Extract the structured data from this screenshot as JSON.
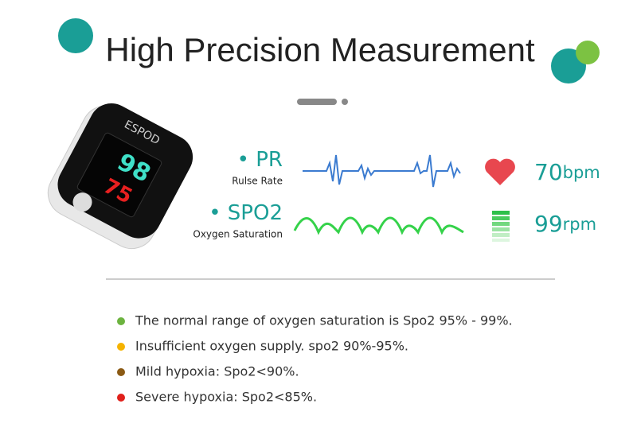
{
  "header": {
    "title": "High Precision Measurement"
  },
  "device": {
    "brand": "ESPOD",
    "spo2_reading": "98",
    "pr_reading": "75"
  },
  "metrics": [
    {
      "label": "PR",
      "sublabel": "Rulse Rate",
      "value": "70",
      "unit": "bpm"
    },
    {
      "label": "SPO2",
      "sublabel": "Oxygen Saturation",
      "value": "99",
      "unit": "rpm"
    }
  ],
  "notes": [
    "The normal range of oxygen saturation is Spo2 95% - 99%.",
    "Insufficient oxygen supply. spo2 90%-95%.",
    "Mild hypoxia: Spo2<90%.",
    "Severe hypoxia: Spo2<85%."
  ]
}
